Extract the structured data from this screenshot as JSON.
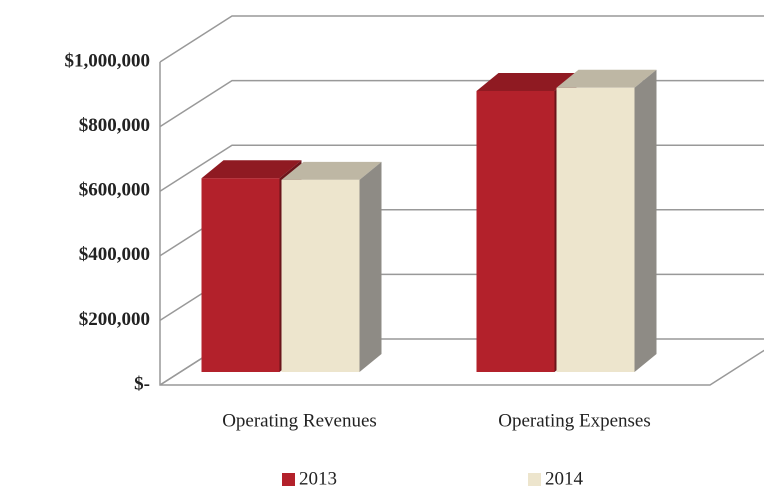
{
  "chart_data": {
    "type": "bar",
    "categories": [
      "Operating Revenues",
      "Operating Expenses"
    ],
    "series": [
      {
        "name": "2013",
        "color": "#b3212b",
        "values": [
          600000,
          870000
        ]
      },
      {
        "name": "2014",
        "color": "#ede5cd",
        "values": [
          595000,
          880000
        ]
      }
    ],
    "ylim": [
      0,
      1000000
    ],
    "yticks": [
      {
        "value": 0,
        "label": "$-"
      },
      {
        "value": 200000,
        "label": "$200,000"
      },
      {
        "value": 400000,
        "label": "$400,000"
      },
      {
        "value": 600000,
        "label": "$600,000"
      },
      {
        "value": 800000,
        "label": "$800,000"
      },
      {
        "value": 1000000,
        "label": "$1,000,000"
      }
    ],
    "grid": true
  }
}
